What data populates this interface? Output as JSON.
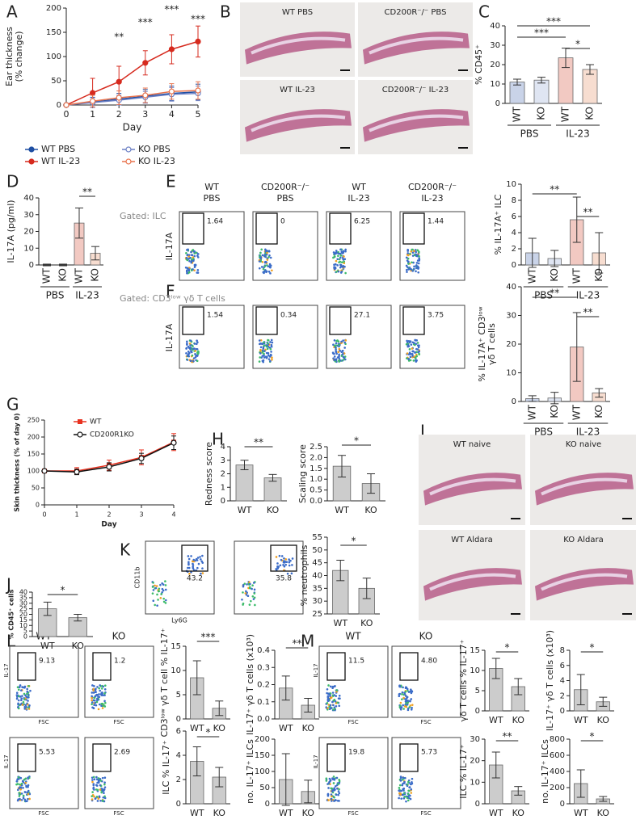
{
  "panel_labels": [
    "A",
    "B",
    "C",
    "D",
    "E",
    "F",
    "G",
    "H",
    "I",
    "J",
    "K",
    "L",
    "M"
  ],
  "histology_B": [
    "WT PBS",
    "CD200R⁻/⁻ PBS",
    "WT IL-23",
    "CD200R⁻/⁻ IL-23"
  ],
  "histology_I": [
    "WT naive",
    "KO naive",
    "WT Aldara",
    "KO Aldara"
  ],
  "flow_E": {
    "gating": "Gated: ILC",
    "headers": [
      [
        "WT",
        "PBS"
      ],
      [
        "CD200R⁻/⁻",
        "PBS"
      ],
      [
        "WT",
        "IL-23"
      ],
      [
        "CD200R⁻/⁻",
        "IL-23"
      ]
    ],
    "ylabel": "IL-17A",
    "gates": [
      "1.64",
      "0",
      "6.25",
      "1.44"
    ]
  },
  "flow_F": {
    "gating": "Gated: CD3ˡᵒʷ γδ T cells",
    "ylabel": "IL-17A",
    "gates": [
      "1.54",
      "0.34",
      "27.1",
      "3.75"
    ]
  },
  "flow_K": {
    "ylabel": "CD11b",
    "xlabel": "Ly6G",
    "gates": [
      "43.2",
      "35.8"
    ]
  },
  "flow_L": {
    "headers": [
      "WT",
      "KO"
    ],
    "ylabel": "IL-17",
    "xlabel": "FSC",
    "gates": [
      "9.13",
      "1.2",
      "5.53",
      "2.69"
    ]
  },
  "flow_M": {
    "headers": [
      "WT",
      "KO"
    ],
    "ylabel": "IL-17",
    "xlabel": "FSC",
    "gates": [
      "11.5",
      "4.80",
      "19.8",
      "5.73"
    ]
  },
  "chart_data": [
    {
      "type": "line",
      "xlabel": "Day",
      "ylabel": [
        "Ear thickness",
        "(% change)"
      ],
      "x": [
        0,
        1,
        2,
        3,
        4,
        5
      ],
      "xlim": [
        0,
        5
      ],
      "xticks": [
        0,
        1,
        2,
        3,
        4,
        5
      ],
      "ylim": [
        0,
        200
      ],
      "yticks": [
        0,
        50,
        100,
        150,
        200
      ],
      "series": [
        {
          "name": "WT PBS",
          "color": "#1f4fa3",
          "marker": "filled",
          "values": [
            0,
            6,
            12,
            18,
            24,
            27
          ],
          "errors": [
            0,
            10,
            12,
            14,
            15,
            16
          ]
        },
        {
          "name": "WT IL-23",
          "color": "#d62a1e",
          "marker": "filled",
          "values": [
            0,
            25,
            48,
            87,
            115,
            131
          ],
          "errors": [
            0,
            30,
            32,
            25,
            30,
            32
          ]
        },
        {
          "name": "KO PBS",
          "color": "#6b7fc4",
          "marker": "open",
          "values": [
            0,
            5,
            10,
            16,
            22,
            24
          ],
          "errors": [
            0,
            10,
            10,
            12,
            14,
            15
          ]
        },
        {
          "name": "KO IL-23",
          "color": "#e8734d",
          "marker": "open",
          "values": [
            0,
            8,
            15,
            20,
            28,
            30
          ],
          "errors": [
            0,
            12,
            14,
            15,
            16,
            18
          ]
        }
      ],
      "annotations": [
        "**",
        "***",
        "***",
        "***"
      ]
    },
    {
      "type": "bar",
      "ylabel": "% CD45⁺",
      "categories": [
        "WT",
        "KO",
        "WT",
        "KO"
      ],
      "groups": [
        "PBS",
        "IL-23"
      ],
      "values": [
        11,
        12,
        23.5,
        17.5
      ],
      "errors": [
        1.5,
        1.5,
        5,
        2.5
      ],
      "colors": [
        "#c9d3e8",
        "#dfe5f2",
        "#f2c9c2",
        "#f7ddd0"
      ],
      "ylim": [
        0,
        40
      ],
      "yticks": [
        0,
        10,
        20,
        30,
        40
      ],
      "annotations": [
        "***",
        "***",
        "*"
      ]
    },
    {
      "type": "bar",
      "ylabel": "IL-17A (pg/ml)",
      "categories": [
        "WT",
        "KO",
        "WT",
        "KO"
      ],
      "groups": [
        "PBS",
        "IL-23"
      ],
      "values": [
        0,
        0,
        25,
        7
      ],
      "errors": [
        0.5,
        0.5,
        9,
        4
      ],
      "colors": [
        "#c9d3e8",
        "#dfe5f2",
        "#f2c9c2",
        "#f7ddd0"
      ],
      "ylim": [
        0,
        40
      ],
      "yticks": [
        0,
        10,
        20,
        30,
        40
      ],
      "annotations": [
        "**"
      ]
    },
    {
      "type": "bar",
      "ylabel": "% IL-17A⁺ ILC",
      "categories": [
        "WT",
        "KO",
        "WT",
        "KO"
      ],
      "groups": [
        "PBS",
        "IL-23"
      ],
      "values": [
        1.5,
        0.8,
        5.6,
        1.5
      ],
      "errors": [
        1.8,
        1,
        2.8,
        2.5
      ],
      "colors": [
        "#c9d3e8",
        "#dfe5f2",
        "#f2c9c2",
        "#f7ddd0"
      ],
      "ylim": [
        0,
        10
      ],
      "yticks": [
        0,
        2,
        4,
        6,
        8,
        10
      ],
      "annotations": [
        "**",
        "**"
      ]
    },
    {
      "type": "bar",
      "ylabel": [
        "% IL-17A⁺ CD3ˡᵒʷ",
        "γδ T cells"
      ],
      "categories": [
        "WT",
        "KO",
        "WT",
        "KO"
      ],
      "groups": [
        "PBS",
        "IL-23"
      ],
      "values": [
        1,
        1.2,
        19,
        3
      ],
      "errors": [
        1,
        2,
        12,
        1.5
      ],
      "colors": [
        "#c9d3e8",
        "#dfe5f2",
        "#f2c9c2",
        "#f7ddd0"
      ],
      "ylim": [
        0,
        40
      ],
      "yticks": [
        0,
        10,
        20,
        30,
        40
      ],
      "annotations": [
        "**",
        "**"
      ]
    },
    {
      "type": "line",
      "xlabel": "Day",
      "ylabel": "Skin thickness (% of day 0)",
      "x": [
        0,
        1,
        2,
        3,
        4
      ],
      "xlim": [
        0,
        4
      ],
      "xticks": [
        0,
        1,
        2,
        3,
        4
      ],
      "ylim": [
        0,
        250
      ],
      "yticks": [
        0,
        50,
        100,
        150,
        200,
        250
      ],
      "series": [
        {
          "name": "WT",
          "color": "#e8311f",
          "marker": "square",
          "values": [
            100,
            100,
            117,
            140,
            185
          ],
          "errors": [
            3,
            10,
            15,
            22,
            25
          ]
        },
        {
          "name": "CD200R1KO",
          "color": "#111111",
          "marker": "open",
          "values": [
            100,
            97,
            112,
            137,
            183
          ],
          "errors": [
            3,
            8,
            12,
            15,
            20
          ]
        }
      ]
    },
    {
      "type": "bar",
      "ylabel": "Redness score",
      "categories": [
        "WT",
        "KO"
      ],
      "values": [
        2.65,
        1.7
      ],
      "errors": [
        0.35,
        0.25
      ],
      "colors": [
        "#cccccc",
        "#cccccc"
      ],
      "ylim": [
        0,
        4
      ],
      "yticks": [
        0,
        1,
        2,
        3,
        4
      ],
      "annotations": [
        "**"
      ]
    },
    {
      "type": "bar",
      "ylabel": "Scaling score",
      "categories": [
        "WT",
        "KO"
      ],
      "values": [
        1.6,
        0.8
      ],
      "errors": [
        0.5,
        0.45
      ],
      "colors": [
        "#cccccc",
        "#cccccc"
      ],
      "ylim": [
        0,
        2.5
      ],
      "yticks": [
        {
          "value": 0,
          "label": "0.0"
        },
        0.5,
        {
          "value": 1,
          "label": "1.0"
        },
        1.5,
        {
          "value": 2,
          "label": "2.0"
        },
        2.5
      ],
      "annotations": [
        "*"
      ]
    },
    {
      "type": "bar",
      "ylabel": "% CD45⁺ cells",
      "categories": [
        "WT",
        "KO"
      ],
      "values": [
        25,
        17
      ],
      "errors": [
        6,
        3
      ],
      "colors": [
        "#cccccc",
        "#cccccc"
      ],
      "ylim": [
        0,
        40
      ],
      "yticks": [
        0,
        5,
        10,
        15,
        20,
        25,
        30,
        35,
        40
      ],
      "annotations": [
        "*"
      ]
    },
    {
      "type": "bar",
      "ylabel": "% neutrophils",
      "categories": [
        "WT",
        "KO"
      ],
      "values": [
        42,
        35
      ],
      "errors": [
        4,
        4
      ],
      "colors": [
        "#cccccc",
        "#cccccc"
      ],
      "ylim": [
        25,
        55
      ],
      "yticks": [
        25,
        30,
        35,
        40,
        45,
        50,
        55
      ],
      "annotations": [
        "*"
      ]
    },
    {
      "type": "bar",
      "ylabel": "CD3ˡᵒʷ γδ T cell % IL-17⁺",
      "categories": [
        "WT",
        "KO"
      ],
      "values": [
        8.5,
        2.2
      ],
      "errors": [
        3.5,
        1.5
      ],
      "colors": [
        "#cccccc",
        "#cccccc"
      ],
      "ylim": [
        0,
        15
      ],
      "yticks": [
        0,
        5,
        10,
        15
      ],
      "annotations": [
        "***"
      ]
    },
    {
      "type": "bar",
      "ylabel": "IL-17⁺ γδ T cells (x10³)",
      "categories": [
        "WT",
        "KO"
      ],
      "values": [
        0.18,
        0.08
      ],
      "errors": [
        0.07,
        0.04
      ],
      "colors": [
        "#cccccc",
        "#cccccc"
      ],
      "ylim": [
        0,
        0.4
      ],
      "yticks": [
        {
          "value": 0,
          "label": "0.0"
        },
        0.1,
        0.2,
        0.3,
        0.4
      ],
      "annotations": [
        "**"
      ]
    },
    {
      "type": "bar",
      "ylabel": "ILC % IL-17⁺",
      "categories": [
        "WT",
        "KO"
      ],
      "values": [
        3.5,
        2.2
      ],
      "errors": [
        1.2,
        0.8
      ],
      "colors": [
        "#cccccc",
        "#cccccc"
      ],
      "ylim": [
        0,
        6
      ],
      "yticks": [
        0,
        2,
        4,
        6
      ],
      "annotations": [
        "*"
      ]
    },
    {
      "type": "bar",
      "ylabel": "no. IL-17⁺ ILCs",
      "categories": [
        "WT",
        "KO"
      ],
      "values": [
        75,
        38
      ],
      "errors": [
        80,
        35
      ],
      "colors": [
        "#cccccc",
        "#cccccc"
      ],
      "ylim": [
        0,
        200
      ],
      "yticks": [
        0,
        50,
        100,
        150,
        200
      ]
    },
    {
      "type": "bar",
      "ylabel": "γδ T cells % IL-17⁺",
      "categories": [
        "WT",
        "KO"
      ],
      "values": [
        10.5,
        6
      ],
      "errors": [
        2.5,
        2
      ],
      "colors": [
        "#cccccc",
        "#cccccc"
      ],
      "ylim": [
        0,
        15
      ],
      "yticks": [
        0,
        5,
        10,
        15
      ],
      "annotations": [
        "*"
      ]
    },
    {
      "type": "bar",
      "ylabel": "IL-17⁺ γδ T cells (x10³)",
      "categories": [
        "WT",
        "KO"
      ],
      "values": [
        2.8,
        1.2
      ],
      "errors": [
        2,
        0.6
      ],
      "colors": [
        "#cccccc",
        "#cccccc"
      ],
      "ylim": [
        0,
        8
      ],
      "yticks": [
        0,
        2,
        4,
        6,
        8
      ],
      "annotations": [
        "*"
      ]
    },
    {
      "type": "bar",
      "ylabel": "ILC % IL-17⁺",
      "categories": [
        "WT",
        "KO"
      ],
      "values": [
        18,
        6
      ],
      "errors": [
        6,
        2
      ],
      "colors": [
        "#cccccc",
        "#cccccc"
      ],
      "ylim": [
        0,
        30
      ],
      "yticks": [
        0,
        10,
        20,
        30
      ],
      "annotations": [
        "**"
      ]
    },
    {
      "type": "bar",
      "ylabel": "no. IL-17⁺ ILCs",
      "categories": [
        "WT",
        "KO"
      ],
      "values": [
        250,
        60
      ],
      "errors": [
        170,
        30
      ],
      "colors": [
        "#cccccc",
        "#cccccc"
      ],
      "ylim": [
        0,
        800
      ],
      "yticks": [
        0,
        200,
        400,
        600,
        800
      ],
      "annotations": [
        "*"
      ]
    }
  ]
}
